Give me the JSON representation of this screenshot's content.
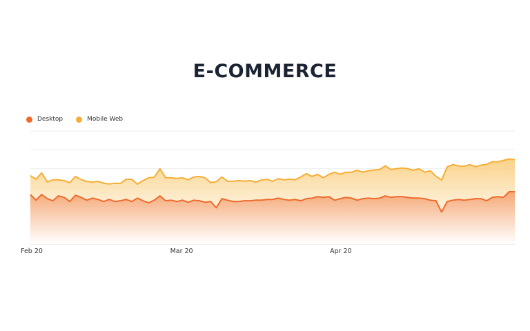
{
  "title": "E-COMMERCE",
  "legend": {
    "desktop": "Desktop",
    "mobile": "Mobile Web"
  },
  "colors": {
    "desktop": "#ee6a2c",
    "mobile": "#f5ad36",
    "gridline": "#ececec"
  },
  "chart_data": {
    "type": "area",
    "stacked": true,
    "title": "E-COMMERCE",
    "xlabel": "",
    "ylabel": "",
    "x_range": [
      "2020-02-01",
      "2020-05-05"
    ],
    "x_ticks": [
      {
        "date": "2020-02-01",
        "label": "Feb 20"
      },
      {
        "date": "2020-03-01",
        "label": "Mar 20"
      },
      {
        "date": "2020-04-01",
        "label": "Apr 20"
      }
    ],
    "ylim": [
      0,
      6
    ],
    "grid": true,
    "legend_position": "top-left",
    "y_axis_labels_shown": false,
    "series": [
      {
        "name": "Desktop",
        "values": [
          2.63,
          2.33,
          2.63,
          2.41,
          2.3,
          2.56,
          2.48,
          2.26,
          2.59,
          2.48,
          2.33,
          2.44,
          2.37,
          2.26,
          2.37,
          2.26,
          2.3,
          2.37,
          2.26,
          2.44,
          2.3,
          2.19,
          2.33,
          2.56,
          2.3,
          2.33,
          2.26,
          2.33,
          2.22,
          2.33,
          2.3,
          2.22,
          2.26,
          1.93,
          2.41,
          2.33,
          2.26,
          2.26,
          2.3,
          2.3,
          2.33,
          2.33,
          2.37,
          2.37,
          2.44,
          2.37,
          2.33,
          2.37,
          2.3,
          2.41,
          2.44,
          2.52,
          2.48,
          2.52,
          2.33,
          2.41,
          2.48,
          2.44,
          2.33,
          2.41,
          2.44,
          2.41,
          2.44,
          2.56,
          2.48,
          2.52,
          2.52,
          2.48,
          2.44,
          2.44,
          2.41,
          2.33,
          2.3,
          1.7,
          2.26,
          2.33,
          2.37,
          2.33,
          2.37,
          2.41,
          2.41,
          2.3,
          2.48,
          2.52,
          2.48,
          2.78,
          2.78
        ],
        "stack_tops": [
          2.63,
          2.33,
          2.63,
          2.41,
          2.3,
          2.56,
          2.48,
          2.26,
          2.59,
          2.48,
          2.33,
          2.44,
          2.37,
          2.26,
          2.37,
          2.26,
          2.3,
          2.37,
          2.26,
          2.44,
          2.3,
          2.19,
          2.33,
          2.56,
          2.3,
          2.33,
          2.26,
          2.33,
          2.22,
          2.33,
          2.3,
          2.22,
          2.26,
          1.93,
          2.41,
          2.33,
          2.26,
          2.26,
          2.3,
          2.3,
          2.33,
          2.33,
          2.37,
          2.37,
          2.44,
          2.37,
          2.33,
          2.37,
          2.3,
          2.41,
          2.44,
          2.52,
          2.48,
          2.52,
          2.33,
          2.41,
          2.48,
          2.44,
          2.33,
          2.41,
          2.44,
          2.41,
          2.44,
          2.56,
          2.48,
          2.52,
          2.52,
          2.48,
          2.44,
          2.44,
          2.41,
          2.33,
          2.3,
          1.7,
          2.26,
          2.33,
          2.37,
          2.33,
          2.37,
          2.41,
          2.41,
          2.3,
          2.48,
          2.52,
          2.48,
          2.78,
          2.78
        ]
      },
      {
        "name": "Mobile Web",
        "values": [
          1.0,
          1.11,
          1.15,
          0.89,
          1.11,
          0.85,
          0.89,
          1.0,
          1.0,
          0.95,
          0.99,
          0.85,
          0.96,
          0.97,
          0.82,
          0.97,
          0.92,
          1.07,
          1.18,
          0.74,
          1.07,
          1.33,
          1.22,
          1.44,
          1.22,
          1.19,
          1.22,
          1.19,
          1.19,
          1.23,
          1.29,
          1.3,
          1.0,
          1.38,
          1.15,
          1.0,
          1.08,
          1.11,
          1.04,
          1.07,
          0.96,
          1.07,
          1.07,
          0.96,
          1.03,
          1.04,
          1.12,
          1.04,
          1.26,
          1.33,
          1.15,
          1.18,
          1.04,
          1.18,
          1.48,
          1.3,
          1.33,
          1.37,
          1.59,
          1.41,
          1.45,
          1.52,
          1.52,
          1.59,
          1.48,
          1.48,
          1.52,
          1.52,
          1.48,
          1.56,
          1.41,
          1.56,
          1.3,
          1.7,
          1.84,
          1.89,
          1.78,
          1.8,
          1.85,
          1.7,
          1.78,
          1.93,
          1.89,
          1.85,
          1.96,
          1.74,
          1.7
        ],
        "stack_tops": [
          3.63,
          3.44,
          3.78,
          3.3,
          3.41,
          3.41,
          3.37,
          3.26,
          3.59,
          3.43,
          3.32,
          3.29,
          3.33,
          3.23,
          3.19,
          3.23,
          3.22,
          3.44,
          3.44,
          3.18,
          3.37,
          3.52,
          3.55,
          4.0,
          3.52,
          3.52,
          3.48,
          3.52,
          3.41,
          3.56,
          3.59,
          3.52,
          3.26,
          3.31,
          3.56,
          3.33,
          3.34,
          3.37,
          3.34,
          3.37,
          3.29,
          3.4,
          3.44,
          3.33,
          3.47,
          3.41,
          3.45,
          3.41,
          3.56,
          3.74,
          3.59,
          3.7,
          3.52,
          3.7,
          3.81,
          3.71,
          3.81,
          3.81,
          3.92,
          3.82,
          3.89,
          3.93,
          3.96,
          4.15,
          3.96,
          4.0,
          4.04,
          4.0,
          3.92,
          4.0,
          3.82,
          3.89,
          3.6,
          3.4,
          4.1,
          4.22,
          4.15,
          4.13,
          4.22,
          4.11,
          4.19,
          4.23,
          4.37,
          4.37,
          4.44,
          4.52,
          4.48
        ]
      }
    ]
  }
}
